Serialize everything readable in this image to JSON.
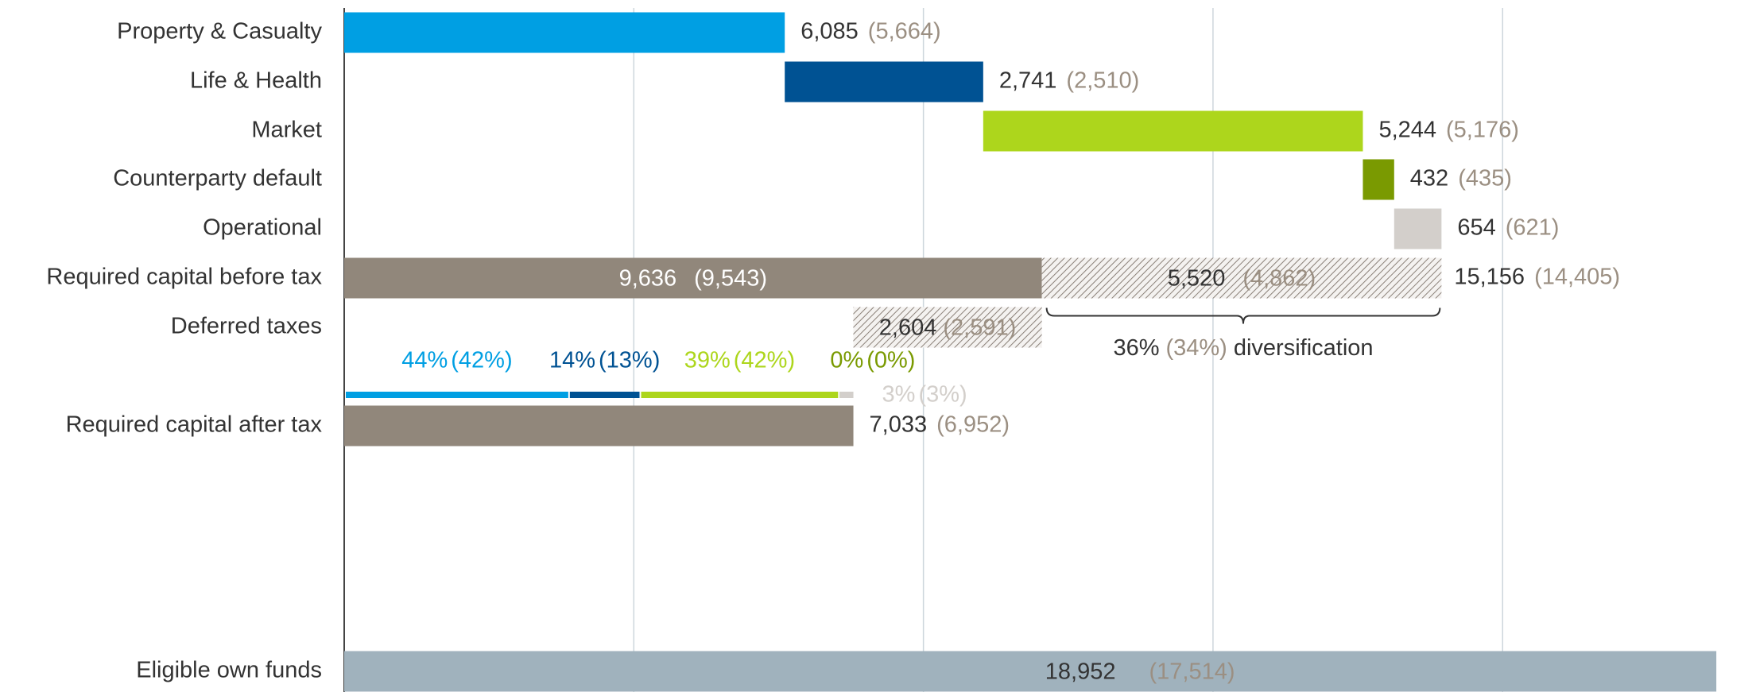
{
  "chart_data": {
    "type": "waterfall",
    "xlim": [
      0,
      19500
    ],
    "xticks": [
      0,
      4000,
      8000,
      12000,
      16000
    ],
    "grid": true,
    "categories": [
      "Property & Casualty",
      "Life & Health",
      "Market",
      "Counterparty default",
      "Operational",
      "Required capital before tax",
      "Deferred taxes",
      "Required capital after tax",
      "Eligible own funds"
    ],
    "kinds": [
      "step",
      "step",
      "step",
      "step",
      "step",
      "total",
      "reduction",
      "total",
      "total"
    ],
    "values": [
      6085,
      2741,
      5244,
      432,
      654,
      15156,
      2604,
      7033,
      18952
    ],
    "value_labels": [
      "6,085",
      "2,741",
      "5,244",
      "432",
      "654",
      "15,156",
      "2,604",
      "7,033",
      "18,952"
    ],
    "prior_values": [
      5664,
      2510,
      5176,
      435,
      621,
      14405,
      2591,
      6952,
      17514
    ],
    "prior_labels": [
      "(5,664)",
      "(2,510)",
      "(5,176)",
      "(435)",
      "(621)",
      "(14,405)",
      "(2,591)",
      "(6,952)",
      "(17,514)"
    ],
    "colors": [
      "#009fe3",
      "#005293",
      "#add61c",
      "#7a9a01",
      "#d3cfcb",
      "#91877b",
      "#91877b",
      "#91877b",
      "#a0b2bd"
    ],
    "net_before_tax": {
      "value": 9636,
      "label": "9,636",
      "prior_value": 9543,
      "prior_label": "(9,543)"
    },
    "diversification": {
      "value": 5520,
      "label": "5,520",
      "prior_value": 4862,
      "prior_label": "(4,862)",
      "share": 36,
      "share_label": "36%",
      "prior_share": 34,
      "prior_share_label": "(34%)",
      "text": "diversification"
    },
    "split": {
      "values": [
        44,
        14,
        39,
        0,
        3
      ],
      "value_labels": [
        "44%",
        "14%",
        "39%",
        "0%",
        "3%"
      ],
      "prior_values": [
        42,
        13,
        42,
        0,
        3
      ],
      "prior_labels": [
        "(42%)",
        "(13%)",
        "(42%)",
        "(0%)",
        "(3%)"
      ],
      "colors": [
        "#009fe3",
        "#005293",
        "#add61c",
        "#7a9a01",
        "#d3cfcb"
      ]
    }
  }
}
